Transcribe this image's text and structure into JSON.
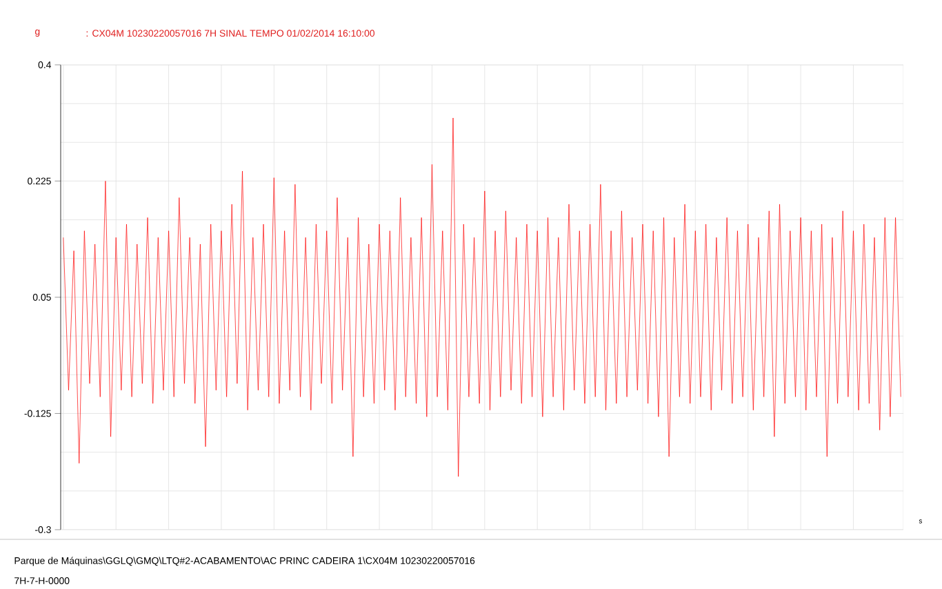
{
  "chart_data": {
    "type": "line",
    "title": ": CX04M 10230220057016 7H SINAL TEMPO 01/02/2014 16:10:00",
    "xlabel": "s",
    "ylabel": "g",
    "annotations": [
      "Parque de Máquinas\\GGLQ\\GMQ\\LTQ#2-ACABAMENTO\\AC PRINC CADEIRA 1\\CX04M 10230220057016",
      "7H-7-H-0000"
    ],
    "categories": [
      null,
      null,
      null,
      null,
      null,
      null,
      null,
      null,
      null,
      null,
      null,
      null,
      null,
      null,
      null,
      null,
      null,
      null,
      null,
      null,
      null,
      null,
      null,
      null,
      null,
      null,
      null,
      null,
      null,
      null,
      null,
      null,
      null,
      null,
      null,
      null,
      null,
      null,
      null,
      null,
      null,
      null,
      null,
      null,
      null,
      null,
      null,
      null,
      null,
      null,
      null,
      null,
      null,
      null,
      null,
      null,
      null,
      null,
      null,
      null,
      null,
      null,
      null,
      null,
      null,
      null,
      null,
      null,
      null,
      null,
      null,
      null,
      null,
      null,
      null,
      null,
      null,
      null,
      null,
      null,
      null,
      null,
      null,
      null,
      null,
      null,
      null,
      null,
      null,
      null,
      null,
      null,
      null,
      null,
      null,
      null,
      null,
      null,
      null,
      null,
      null,
      null,
      null,
      null,
      null,
      null,
      null,
      null,
      null,
      null,
      null,
      null,
      null,
      null,
      null,
      null,
      null,
      null,
      null,
      null,
      null,
      null,
      null,
      null,
      null,
      null,
      null,
      null,
      null,
      null,
      null,
      null,
      null,
      null,
      null,
      null,
      null,
      null,
      null,
      null,
      null,
      null,
      null,
      null,
      null,
      null,
      null,
      null,
      null,
      null,
      null,
      null,
      null,
      null,
      null,
      null,
      null,
      null,
      null,
      null
    ],
    "series": [
      {
        "color": "#ff0000",
        "values": [
          0.14,
          -0.09,
          0.12,
          -0.2,
          0.15,
          -0.08,
          0.13,
          -0.1,
          0.225,
          -0.16,
          0.14,
          -0.09,
          0.16,
          -0.1,
          0.13,
          -0.08,
          0.17,
          -0.11,
          0.14,
          -0.09,
          0.15,
          -0.1,
          0.2,
          -0.08,
          0.14,
          -0.11,
          0.13,
          -0.175,
          0.16,
          -0.09,
          0.15,
          -0.1,
          0.19,
          -0.08,
          0.24,
          -0.12,
          0.14,
          -0.09,
          0.16,
          -0.1,
          0.23,
          -0.11,
          0.15,
          -0.09,
          0.22,
          -0.1,
          0.14,
          -0.12,
          0.16,
          -0.08,
          0.15,
          -0.11,
          0.2,
          -0.09,
          0.14,
          -0.19,
          0.17,
          -0.1,
          0.13,
          -0.11,
          0.16,
          -0.09,
          0.15,
          -0.12,
          0.2,
          -0.1,
          0.14,
          -0.11,
          0.17,
          -0.13,
          0.25,
          -0.1,
          0.15,
          -0.12,
          0.32,
          -0.22,
          0.16,
          -0.1,
          0.14,
          -0.11,
          0.21,
          -0.12,
          0.15,
          -0.1,
          0.18,
          -0.09,
          0.14,
          -0.11,
          0.16,
          -0.1,
          0.15,
          -0.13,
          0.17,
          -0.1,
          0.14,
          -0.12,
          0.19,
          -0.09,
          0.15,
          -0.11,
          0.16,
          -0.1,
          0.22,
          -0.12,
          0.15,
          -0.11,
          0.18,
          -0.1,
          0.14,
          -0.09,
          0.16,
          -0.11,
          0.15,
          -0.13,
          0.17,
          -0.19,
          0.14,
          -0.1,
          0.19,
          -0.11,
          0.15,
          -0.1,
          0.16,
          -0.12,
          0.14,
          -0.09,
          0.17,
          -0.11,
          0.15,
          -0.1,
          0.16,
          -0.12,
          0.14,
          -0.1,
          0.18,
          -0.16,
          0.19,
          -0.11,
          0.15,
          -0.1,
          0.17,
          -0.12,
          0.15,
          -0.1,
          0.16,
          -0.19,
          0.14,
          -0.11,
          0.18,
          -0.1,
          0.15,
          -0.12,
          0.16,
          -0.11,
          0.14,
          -0.15,
          0.17,
          -0.13,
          0.17,
          -0.1
        ]
      }
    ],
    "ylim": [
      -0.3,
      0.4
    ],
    "yticks": [
      -0.3,
      -0.125,
      0.05,
      0.225,
      0.4
    ],
    "grid": true,
    "marker": "none",
    "line_style": "solid"
  }
}
